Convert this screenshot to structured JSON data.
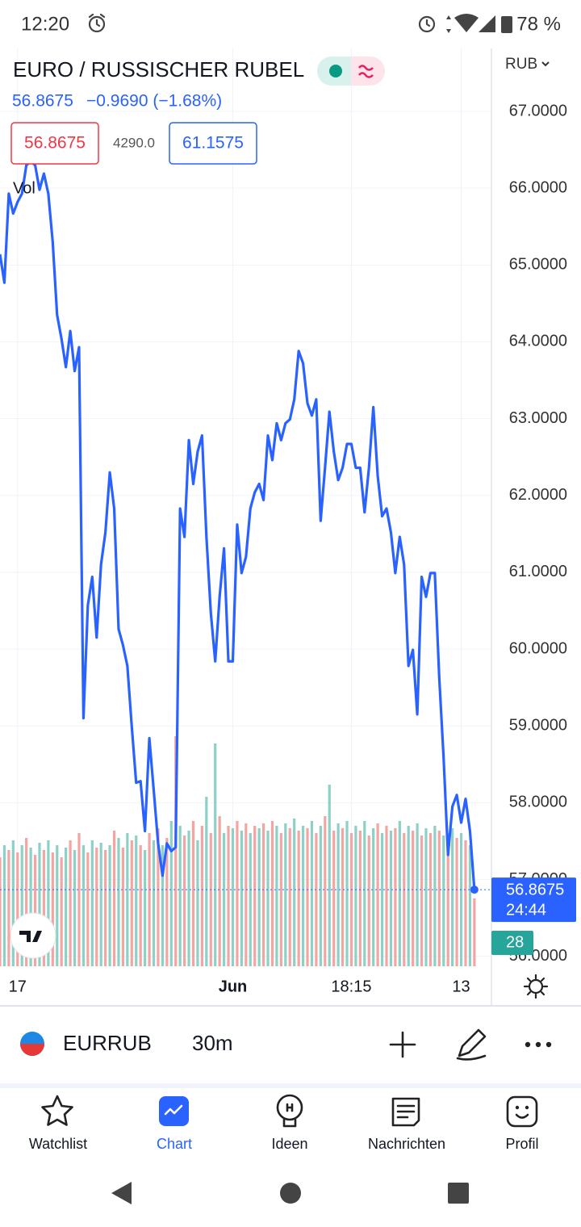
{
  "status_bar": {
    "time": "12:20",
    "battery": "78 %"
  },
  "header": {
    "title": "EURO / RUSSISCHER RUBEL",
    "change": "−0.9690 (−1.68%)",
    "spread": "4290.0",
    "ask": "61.1575",
    "volume_label": "Vol",
    "currency": "RUB"
  },
  "chart_data": {
    "type": "line",
    "color": "#2962ff",
    "values": [
      65.14,
      64.77,
      65.93,
      65.67,
      65.82,
      65.93,
      66.3,
      66.35,
      66.3,
      65.98,
      66.19,
      65.93,
      65.3,
      64.35,
      64.04,
      63.67,
      64.14,
      63.62,
      63.93,
      59.1,
      60.57,
      60.94,
      60.15,
      61.1,
      61.52,
      62.3,
      61.83,
      60.26,
      60.05,
      59.78,
      58.99,
      58.26,
      58.28,
      57.63,
      58.84,
      58.16,
      57.47,
      57.05,
      57.47,
      57.37,
      57.42,
      61.83,
      61.46,
      62.72,
      62.15,
      62.57,
      62.78,
      61.46,
      60.47,
      59.84,
      60.68,
      61.31,
      59.84,
      59.84,
      61.62,
      60.99,
      61.2,
      61.83,
      62.04,
      62.15,
      61.94,
      62.78,
      62.46,
      62.94,
      62.72,
      62.94,
      62.99,
      63.25,
      63.88,
      63.72,
      63.2,
      63.04,
      63.25,
      61.67,
      62.36,
      63.09,
      62.57,
      62.2,
      62.36,
      62.67,
      62.67,
      62.36,
      62.36,
      61.78,
      62.36,
      63.15,
      62.25,
      61.73,
      61.83,
      61.52,
      60.99,
      61.46,
      61.1,
      59.78,
      59.99,
      59.15,
      60.94,
      60.68,
      60.99,
      60.99,
      59.63,
      58.58,
      57.32,
      57.95,
      58.1,
      57.74,
      58.05,
      57.63,
      56.8675
    ],
    "xlim": [
      0,
      111.7
    ],
    "xticks": [
      {
        "value": 4,
        "label": "17"
      },
      {
        "value": 53,
        "label": "Jun"
      },
      {
        "value": 80,
        "label": "18:15"
      },
      {
        "value": 105,
        "label": "13"
      }
    ],
    "ylim": [
      55.87,
      67.82
    ],
    "yticks": [
      {
        "value": 56,
        "label": "56.0000"
      },
      {
        "value": 57,
        "label": "57.0000"
      },
      {
        "value": 58,
        "label": "58.0000"
      },
      {
        "value": 59,
        "label": "59.0000"
      },
      {
        "value": 60,
        "label": "60.0000"
      },
      {
        "value": 61,
        "label": "61.0000"
      },
      {
        "value": 62,
        "label": "62.0000"
      },
      {
        "value": 63,
        "label": "63.0000"
      },
      {
        "value": 64,
        "label": "64.0000"
      },
      {
        "value": 65,
        "label": "65.0000"
      },
      {
        "value": 66,
        "label": "66.0000"
      },
      {
        "value": 67,
        "label": "67.0000"
      }
    ],
    "grid": true,
    "countdown": "24:44",
    "volume": {
      "ylim": [
        0,
        100
      ],
      "colors": [
        "#f3a5a2",
        "#8cd0c6"
      ],
      "values": [
        45,
        50,
        48,
        52,
        47,
        50,
        53,
        49,
        46,
        51,
        48,
        52,
        47,
        50,
        45,
        49,
        52,
        48,
        55,
        50,
        47,
        52,
        49,
        51,
        48,
        50,
        56,
        53,
        49,
        55,
        52,
        54,
        50,
        48,
        55,
        52,
        57,
        50,
        53,
        60,
        95,
        58,
        54,
        56,
        60,
        52,
        58,
        70,
        55,
        92,
        62,
        55,
        58,
        57,
        60,
        56,
        59,
        55,
        58,
        57,
        59,
        56,
        60,
        58,
        55,
        59,
        57,
        61,
        56,
        58,
        57,
        60,
        55,
        58,
        62,
        75,
        56,
        59,
        57,
        60,
        55,
        58,
        56,
        60,
        54,
        57,
        59,
        55,
        58,
        56,
        57,
        60,
        55,
        58,
        56,
        59,
        54,
        57,
        55,
        58,
        56,
        54,
        55,
        57,
        53,
        55,
        52,
        50,
        28
      ]
    }
  },
  "toolbar": {
    "symbol": "EURRUB",
    "interval": "30m"
  },
  "nav": [
    {
      "label": "Watchlist"
    },
    {
      "label": "Chart"
    },
    {
      "label": "Ideen"
    },
    {
      "label": "Nachrichten"
    },
    {
      "label": "Profil"
    }
  ]
}
